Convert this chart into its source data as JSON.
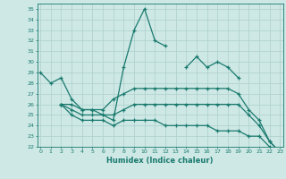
{
  "xlabel": "Humidex (Indice chaleur)",
  "x": [
    0,
    1,
    2,
    3,
    4,
    5,
    6,
    7,
    8,
    9,
    10,
    11,
    12,
    13,
    14,
    15,
    16,
    17,
    18,
    19,
    20,
    21,
    22,
    23
  ],
  "line1": [
    29,
    28,
    28.5,
    26.5,
    25.5,
    25.5,
    25,
    24.5,
    29.5,
    33,
    35,
    32,
    31.5,
    null,
    29.5,
    30.5,
    29.5,
    30,
    29.5,
    28.5,
    null,
    null,
    null,
    null
  ],
  "line2": [
    null,
    null,
    26,
    26,
    25.5,
    25.5,
    25.5,
    26.5,
    27,
    27.5,
    27.5,
    27.5,
    27.5,
    27.5,
    27.5,
    27.5,
    27.5,
    27.5,
    27.5,
    27,
    25.5,
    24.5,
    22.5,
    21.5
  ],
  "line3": [
    null,
    null,
    26,
    25.5,
    25,
    25,
    25,
    25,
    25.5,
    26,
    26,
    26,
    26,
    26,
    26,
    26,
    26,
    26,
    26,
    26,
    25,
    24,
    22.5,
    21.5
  ],
  "line4": [
    null,
    null,
    26,
    25,
    24.5,
    24.5,
    24.5,
    24,
    24.5,
    24.5,
    24.5,
    24.5,
    24,
    24,
    24,
    24,
    24,
    23.5,
    23.5,
    23.5,
    23,
    23,
    22,
    21.5
  ],
  "ylim_min": 22,
  "ylim_max": 35.5,
  "yticks": [
    22,
    23,
    24,
    25,
    26,
    27,
    28,
    29,
    30,
    31,
    32,
    33,
    34,
    35
  ],
  "xlim_min": -0.3,
  "xlim_max": 23.3,
  "line_color": "#1a7a6e",
  "bg_color": "#cde8e5",
  "grid_color": "#aecfcc"
}
